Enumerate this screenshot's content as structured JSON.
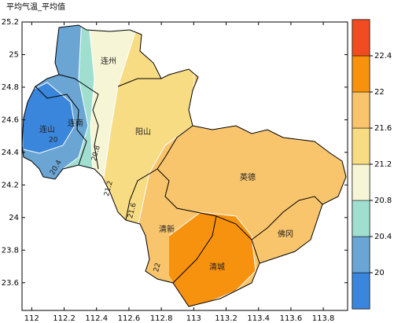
{
  "title": "平均气温_平均值",
  "map": {
    "xlim": [
      111.94,
      113.95
    ],
    "ylim": [
      23.43,
      25.2
    ],
    "xticks": [
      112,
      112.2,
      112.4,
      112.6,
      112.8,
      113,
      113.2,
      113.4,
      113.6,
      113.8
    ],
    "yticks": [
      23.6,
      23.8,
      24,
      24.2,
      24.4,
      24.6,
      24.8,
      25,
      25.2
    ],
    "places": [
      "连州",
      "连南",
      "连山",
      "阳山",
      "英德",
      "清新",
      "清城",
      "佛冈"
    ],
    "contour_labels": [
      "20",
      "20.4",
      "20.8",
      "21.2",
      "21.6",
      "22"
    ]
  },
  "colorbar": {
    "lim": [
      19.6,
      22.8
    ],
    "ticks": [
      20,
      20.4,
      20.8,
      21.2,
      21.6,
      22,
      22.4
    ],
    "colors": [
      "#3a86dc",
      "#6aa5d4",
      "#a0dfd0",
      "#f6f6d7",
      "#f8dc84",
      "#f8c46c",
      "#f7920e",
      "#ef4d21"
    ]
  }
}
